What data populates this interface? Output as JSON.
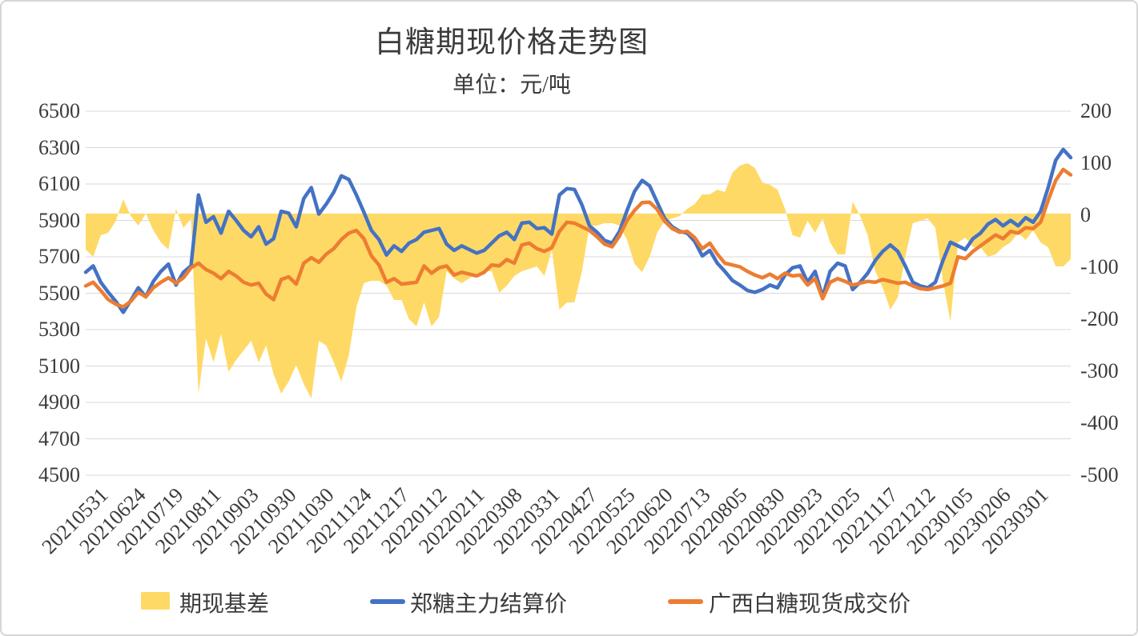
{
  "title": "白糖期现价格走势图",
  "subtitle": "单位：元/吨",
  "colors": {
    "basis_area": "#FFD966",
    "futures_line": "#4472C4",
    "spot_line": "#ED7D31",
    "gridline": "#D9D9D9",
    "text": "#3B3B3B",
    "frame_border": "#D6D6D6",
    "background": "#FFFFFF"
  },
  "legend": [
    {
      "label": "期现基差",
      "color": "#FFD966",
      "swatch": "square"
    },
    {
      "label": "郑糖主力结算价",
      "color": "#4472C4",
      "swatch": "line"
    },
    {
      "label": "广西白糖现货成交价",
      "color": "#ED7D31",
      "swatch": "line"
    }
  ],
  "chart_data": {
    "type": "line",
    "title": "白糖期现价格走势图",
    "subtitle": "单位：元/吨",
    "grid": "horizontal",
    "legend_position": "bottom",
    "left_axis": {
      "min": 4500,
      "max": 6500,
      "step": 200,
      "ticks": [
        6500,
        6300,
        6100,
        5900,
        5700,
        5500,
        5300,
        5100,
        4900,
        4700,
        4500
      ]
    },
    "right_axis": {
      "min": -500,
      "max": 200,
      "step": 100,
      "ticks": [
        200,
        100,
        0,
        -100,
        -200,
        -300,
        -400,
        -500
      ]
    },
    "x_labels": [
      "20210531",
      "20210624",
      "20210719",
      "20210811",
      "20210903",
      "20210930",
      "20211030",
      "20211124",
      "20211217",
      "20220112",
      "20220211",
      "20220308",
      "20220331",
      "20220427",
      "20220525",
      "20220620",
      "20220713",
      "20220805",
      "20220830",
      "20220923",
      "20221025",
      "20221117",
      "20221212",
      "20230105",
      "20230206",
      "20230301"
    ],
    "series": [
      {
        "name": "郑糖主力结算价",
        "type": "line",
        "axis": "left",
        "color": "#4472C4",
        "values": [
          5615,
          5650,
          5560,
          5505,
          5455,
          5395,
          5460,
          5530,
          5480,
          5565,
          5620,
          5660,
          5545,
          5615,
          5650,
          6040,
          5890,
          5920,
          5830,
          5950,
          5900,
          5845,
          5810,
          5865,
          5770,
          5800,
          5950,
          5940,
          5865,
          6020,
          6080,
          5935,
          5990,
          6055,
          6145,
          6125,
          6040,
          5945,
          5845,
          5795,
          5710,
          5760,
          5730,
          5775,
          5795,
          5835,
          5845,
          5855,
          5770,
          5735,
          5760,
          5740,
          5720,
          5735,
          5775,
          5815,
          5835,
          5795,
          5885,
          5890,
          5855,
          5860,
          5825,
          6040,
          6075,
          6070,
          5985,
          5870,
          5835,
          5790,
          5775,
          5840,
          5955,
          6060,
          6120,
          6090,
          6000,
          5910,
          5865,
          5840,
          5830,
          5785,
          5705,
          5735,
          5665,
          5620,
          5570,
          5545,
          5515,
          5505,
          5520,
          5545,
          5530,
          5600,
          5640,
          5650,
          5560,
          5620,
          5480,
          5620,
          5665,
          5650,
          5520,
          5560,
          5610,
          5680,
          5730,
          5765,
          5730,
          5650,
          5560,
          5540,
          5530,
          5560,
          5680,
          5780,
          5760,
          5740,
          5800,
          5830,
          5880,
          5905,
          5870,
          5900,
          5870,
          5915,
          5890,
          5950,
          6080,
          6230,
          6290,
          6245
        ]
      },
      {
        "name": "广西白糖现货成交价",
        "type": "line",
        "axis": "left",
        "color": "#ED7D31",
        "values": [
          5540,
          5560,
          5515,
          5465,
          5440,
          5425,
          5455,
          5505,
          5480,
          5530,
          5560,
          5585,
          5555,
          5585,
          5640,
          5665,
          5630,
          5610,
          5580,
          5620,
          5595,
          5560,
          5545,
          5555,
          5495,
          5465,
          5575,
          5590,
          5550,
          5665,
          5695,
          5670,
          5715,
          5745,
          5795,
          5830,
          5845,
          5800,
          5705,
          5655,
          5560,
          5580,
          5550,
          5555,
          5560,
          5650,
          5610,
          5640,
          5650,
          5600,
          5615,
          5605,
          5595,
          5615,
          5655,
          5650,
          5685,
          5665,
          5765,
          5775,
          5745,
          5730,
          5750,
          5840,
          5890,
          5885,
          5865,
          5845,
          5810,
          5770,
          5755,
          5815,
          5900,
          5955,
          5998,
          6000,
          5960,
          5895,
          5855,
          5835,
          5840,
          5805,
          5745,
          5775,
          5715,
          5665,
          5655,
          5645,
          5620,
          5600,
          5585,
          5605,
          5580,
          5610,
          5595,
          5600,
          5545,
          5580,
          5470,
          5560,
          5580,
          5565,
          5545,
          5555,
          5565,
          5560,
          5575,
          5565,
          5555,
          5560,
          5540,
          5525,
          5520,
          5530,
          5540,
          5555,
          5700,
          5690,
          5730,
          5760,
          5790,
          5820,
          5800,
          5840,
          5830,
          5860,
          5855,
          5890,
          6010,
          6120,
          6180,
          6150
        ]
      },
      {
        "name": "期现基差",
        "type": "area",
        "axis": "right",
        "color": "#FFD966",
        "derived_from": "spot_minus_futures",
        "baseline_value": 0
      }
    ]
  }
}
